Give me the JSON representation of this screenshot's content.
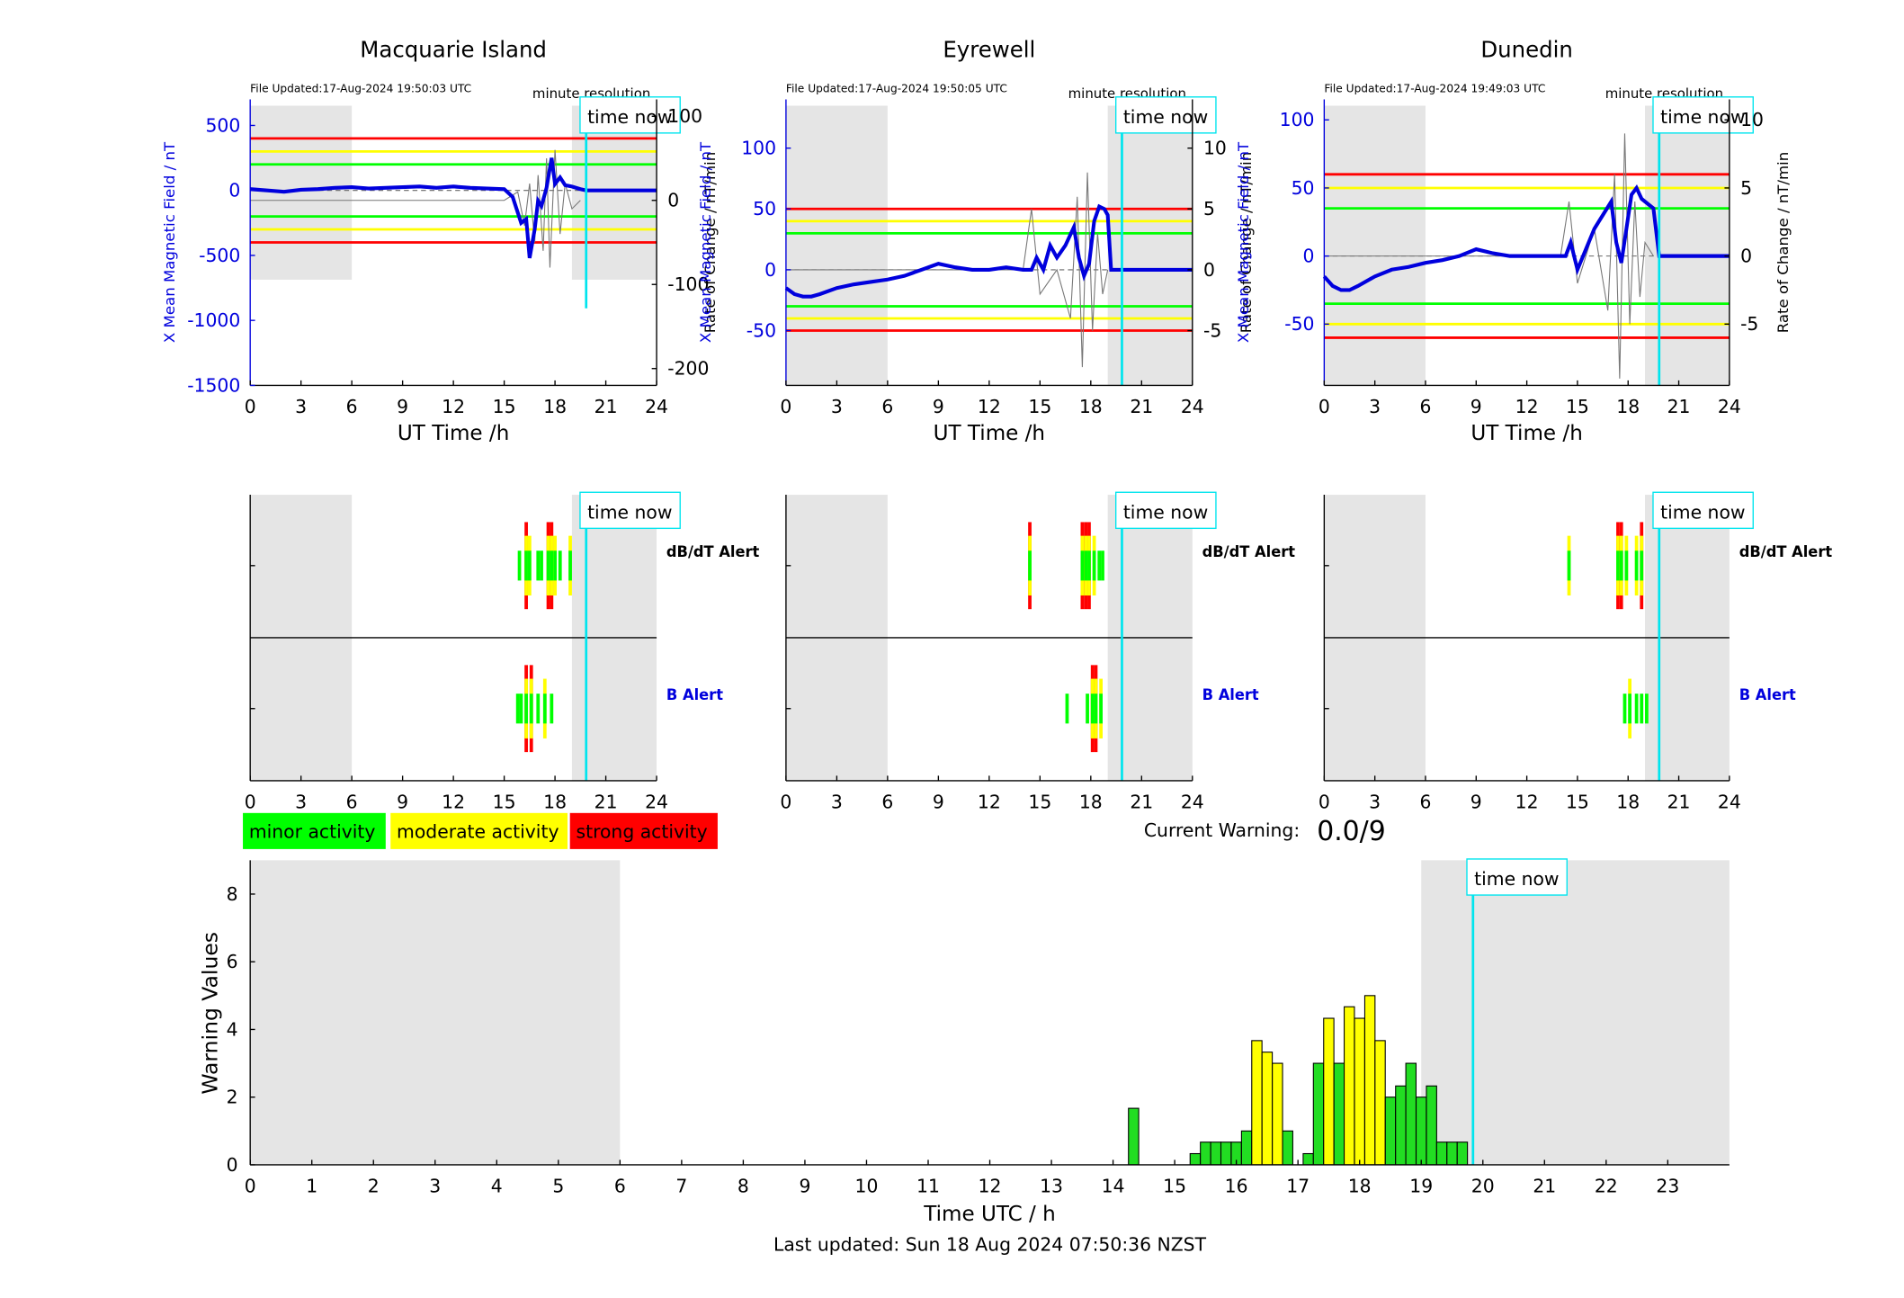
{
  "colors": {
    "red": "#ff0000",
    "yellow": "#ffff00",
    "green": "#00ff00",
    "bar_green": "#22dd22",
    "blue": "#0000dd",
    "cyan": "#00e5ee",
    "shade": "#e5e5e5"
  },
  "labels": {
    "time_now": "time now",
    "minute_resolution": "minute resolution",
    "x_label_top": "UT Time /h",
    "y_left_label": "X Mean Magnetic Field / nT",
    "y_right_label": "Rate of Change / nT/min",
    "dbdt_alert": "dB/dT Alert",
    "b_alert": "B Alert",
    "legend_minor": "minor activity",
    "legend_moderate": "moderate activity",
    "legend_strong": "strong activity",
    "current_warning_label": "Current Warning:",
    "current_warning_value": "0.0/9",
    "bottom_ylabel": "Warning Values",
    "bottom_xlabel": "Time UTC / h",
    "last_updated": "Last updated: Sun 18 Aug 2024 07:50:36 NZST"
  },
  "chart_data": [
    {
      "type": "line",
      "station": "Macquarie Island",
      "file_updated": "File Updated:17-Aug-2024 19:50:03 UTC",
      "xlim": [
        0,
        24
      ],
      "x_ticks": [
        0,
        3,
        6,
        9,
        12,
        15,
        18,
        21,
        24
      ],
      "ylim_left": [
        -1500,
        700
      ],
      "y_ticks_left": [
        -1500,
        -1000,
        -500,
        0,
        500
      ],
      "ylim_right": [
        -220,
        120
      ],
      "y_ticks_right": [
        -200,
        -100,
        0,
        100
      ],
      "thresholds": {
        "red": 400,
        "yellow": 300,
        "green": 200
      },
      "shaded_intervals": [
        [
          0,
          6
        ],
        [
          19,
          24
        ]
      ],
      "time_now": 19.84,
      "series_x": {
        "x": [
          0,
          1,
          2,
          3,
          4,
          5,
          6,
          7,
          8,
          9,
          10,
          11,
          12,
          13,
          14,
          15,
          15.5,
          16,
          16.3,
          16.5,
          16.8,
          17.0,
          17.2,
          17.5,
          17.8,
          18.0,
          18.3,
          18.6,
          19.0,
          19.5,
          19.84,
          24
        ],
        "y": [
          10,
          0,
          -10,
          5,
          10,
          20,
          25,
          15,
          20,
          25,
          30,
          20,
          30,
          20,
          15,
          10,
          -50,
          -250,
          -220,
          -520,
          -300,
          -80,
          -120,
          20,
          250,
          50,
          100,
          40,
          30,
          10,
          0,
          0
        ]
      },
      "series_rate": {
        "x": [
          0,
          3,
          6,
          9,
          12,
          15,
          15.8,
          16.2,
          16.5,
          16.8,
          17.0,
          17.3,
          17.5,
          17.7,
          18.0,
          18.3,
          18.6,
          19.0,
          19.5
        ],
        "y": [
          0,
          0,
          0,
          0,
          0,
          0,
          10,
          -30,
          20,
          -50,
          30,
          -60,
          50,
          -80,
          60,
          -40,
          20,
          -10,
          0
        ]
      }
    },
    {
      "type": "line",
      "station": "Eyrewell",
      "file_updated": "File Updated:17-Aug-2024 19:50:05 UTC",
      "xlim": [
        0,
        24
      ],
      "x_ticks": [
        0,
        3,
        6,
        9,
        12,
        15,
        18,
        21,
        24
      ],
      "ylim_left": [
        -95,
        140
      ],
      "y_ticks_left": [
        -50,
        0,
        50,
        100
      ],
      "ylim_right": [
        -9.5,
        14
      ],
      "y_ticks_right": [
        -5,
        0,
        5,
        10
      ],
      "thresholds": {
        "red": 50,
        "yellow": 40,
        "green": 30
      },
      "shaded_intervals": [
        [
          0,
          6
        ],
        [
          19,
          24
        ]
      ],
      "time_now": 19.84,
      "series_x": {
        "x": [
          0,
          0.5,
          1,
          1.5,
          2,
          3,
          4,
          5,
          6,
          7,
          8,
          9,
          10,
          11,
          12,
          13,
          14,
          14.5,
          14.8,
          15.2,
          15.6,
          16,
          16.5,
          17,
          17.3,
          17.6,
          17.9,
          18.2,
          18.5,
          18.8,
          19.0,
          19.2,
          19.84,
          24
        ],
        "y": [
          -15,
          -20,
          -22,
          -22,
          -20,
          -15,
          -12,
          -10,
          -8,
          -5,
          0,
          5,
          2,
          0,
          0,
          2,
          0,
          0,
          10,
          0,
          20,
          10,
          20,
          35,
          10,
          -5,
          5,
          40,
          52,
          50,
          45,
          0,
          0,
          0
        ]
      },
      "series_rate": {
        "x": [
          0,
          3,
          6,
          9,
          12,
          14,
          14.5,
          15,
          16,
          16.8,
          17.2,
          17.5,
          17.8,
          18.1,
          18.4,
          18.7,
          19.0
        ],
        "y": [
          0,
          0,
          0,
          0,
          0,
          0,
          5,
          -2,
          0,
          -4,
          6,
          -8,
          8,
          -5,
          3,
          -2,
          0
        ]
      }
    },
    {
      "type": "line",
      "station": "Dunedin",
      "file_updated": "File Updated:17-Aug-2024 19:49:03 UTC",
      "xlim": [
        0,
        24
      ],
      "x_ticks": [
        0,
        3,
        6,
        9,
        12,
        15,
        18,
        21,
        24
      ],
      "ylim_left": [
        -95,
        115
      ],
      "y_ticks_left": [
        -50,
        0,
        50,
        100
      ],
      "ylim_right": [
        -9.5,
        11.5
      ],
      "y_ticks_right": [
        -5,
        0,
        5,
        10
      ],
      "thresholds": {
        "red": 60,
        "yellow": 50,
        "green": 35
      },
      "shaded_intervals": [
        [
          0,
          6
        ],
        [
          19,
          24
        ]
      ],
      "time_now": 19.84,
      "series_x": {
        "x": [
          0,
          0.5,
          1,
          1.5,
          2,
          3,
          4,
          5,
          6,
          7,
          8,
          9,
          10,
          11,
          12,
          13,
          14,
          14.3,
          14.6,
          15.0,
          15.5,
          16,
          16.5,
          17,
          17.3,
          17.6,
          17.9,
          18.2,
          18.5,
          18.8,
          19.2,
          19.5,
          19.84,
          24
        ],
        "y": [
          -15,
          -22,
          -25,
          -25,
          -22,
          -15,
          -10,
          -8,
          -5,
          -3,
          0,
          5,
          2,
          0,
          0,
          0,
          0,
          0,
          10,
          -10,
          5,
          20,
          30,
          40,
          10,
          -5,
          20,
          45,
          50,
          42,
          38,
          35,
          0,
          0
        ]
      },
      "series_rate": {
        "x": [
          0,
          3,
          6,
          9,
          12,
          14,
          14.5,
          15,
          16,
          16.8,
          17.2,
          17.5,
          17.8,
          18.1,
          18.4,
          18.7,
          19.0,
          19.5
        ],
        "y": [
          0,
          0,
          0,
          0,
          0,
          0,
          4,
          -2,
          2,
          -4,
          6,
          -9,
          9,
          -5,
          4,
          -3,
          1,
          0
        ]
      }
    },
    {
      "type": "bar",
      "name": "alert_timeline",
      "station": "Macquarie Island",
      "xlim": [
        0,
        24
      ],
      "x_ticks": [
        0,
        3,
        6,
        9,
        12,
        15,
        18,
        21,
        24
      ],
      "shaded_intervals": [
        [
          0,
          6
        ],
        [
          19,
          24
        ]
      ],
      "time_now": 19.84,
      "dbdt": [
        {
          "x": 15.9,
          "level": 1
        },
        {
          "x": 16.3,
          "level": 3
        },
        {
          "x": 16.5,
          "level": 2
        },
        {
          "x": 17.0,
          "level": 1
        },
        {
          "x": 17.2,
          "level": 1
        },
        {
          "x": 17.6,
          "level": 3
        },
        {
          "x": 17.8,
          "level": 3
        },
        {
          "x": 18.0,
          "level": 2
        },
        {
          "x": 18.3,
          "level": 1
        },
        {
          "x": 18.9,
          "level": 2
        }
      ],
      "b": [
        {
          "x": 15.8,
          "level": 1
        },
        {
          "x": 16.0,
          "level": 1
        },
        {
          "x": 16.3,
          "level": 3
        },
        {
          "x": 16.6,
          "level": 3
        },
        {
          "x": 17.0,
          "level": 1
        },
        {
          "x": 17.4,
          "level": 2
        },
        {
          "x": 17.8,
          "level": 1
        }
      ]
    },
    {
      "type": "bar",
      "name": "alert_timeline",
      "station": "Eyrewell",
      "xlim": [
        0,
        24
      ],
      "x_ticks": [
        0,
        3,
        6,
        9,
        12,
        15,
        18,
        21,
        24
      ],
      "shaded_intervals": [
        [
          0,
          6
        ],
        [
          19,
          24
        ]
      ],
      "time_now": 19.84,
      "dbdt": [
        {
          "x": 14.4,
          "level": 3
        },
        {
          "x": 17.5,
          "level": 3
        },
        {
          "x": 17.7,
          "level": 3
        },
        {
          "x": 17.9,
          "level": 3
        },
        {
          "x": 18.2,
          "level": 2
        },
        {
          "x": 18.5,
          "level": 1
        },
        {
          "x": 18.7,
          "level": 1
        }
      ],
      "b": [
        {
          "x": 16.6,
          "level": 1
        },
        {
          "x": 17.8,
          "level": 1
        },
        {
          "x": 18.1,
          "level": 3
        },
        {
          "x": 18.3,
          "level": 3
        },
        {
          "x": 18.6,
          "level": 2
        }
      ]
    },
    {
      "type": "bar",
      "name": "alert_timeline",
      "station": "Dunedin",
      "xlim": [
        0,
        24
      ],
      "x_ticks": [
        0,
        3,
        6,
        9,
        12,
        15,
        18,
        21,
        24
      ],
      "shaded_intervals": [
        [
          0,
          6
        ],
        [
          19,
          24
        ]
      ],
      "time_now": 19.84,
      "dbdt": [
        {
          "x": 14.5,
          "level": 2
        },
        {
          "x": 17.4,
          "level": 3
        },
        {
          "x": 17.6,
          "level": 3
        },
        {
          "x": 17.9,
          "level": 2
        },
        {
          "x": 18.5,
          "level": 2
        },
        {
          "x": 18.8,
          "level": 3
        }
      ],
      "b": [
        {
          "x": 17.8,
          "level": 1
        },
        {
          "x": 18.1,
          "level": 2
        },
        {
          "x": 18.5,
          "level": 1
        },
        {
          "x": 18.8,
          "level": 1
        },
        {
          "x": 19.1,
          "level": 1
        }
      ]
    },
    {
      "type": "bar",
      "name": "warning_values",
      "xlim": [
        0,
        24
      ],
      "ylim": [
        0,
        9
      ],
      "x_ticks": [
        0,
        1,
        2,
        3,
        4,
        5,
        6,
        7,
        8,
        9,
        10,
        11,
        12,
        13,
        14,
        15,
        16,
        17,
        18,
        19,
        20,
        21,
        22,
        23
      ],
      "y_ticks": [
        0,
        2,
        4,
        6,
        8
      ],
      "shaded_intervals": [
        [
          0,
          6
        ],
        [
          19,
          24
        ]
      ],
      "time_now": 19.84,
      "bar_width": 0.166,
      "bars": [
        {
          "x": 14.333,
          "value": 1.67,
          "level": 1
        },
        {
          "x": 15.333,
          "value": 0.33,
          "level": 1
        },
        {
          "x": 15.5,
          "value": 0.67,
          "level": 1
        },
        {
          "x": 15.667,
          "value": 0.67,
          "level": 1
        },
        {
          "x": 15.833,
          "value": 0.67,
          "level": 1
        },
        {
          "x": 16.0,
          "value": 0.67,
          "level": 1
        },
        {
          "x": 16.167,
          "value": 1.0,
          "level": 1
        },
        {
          "x": 16.333,
          "value": 3.67,
          "level": 2
        },
        {
          "x": 16.5,
          "value": 3.33,
          "level": 2
        },
        {
          "x": 16.667,
          "value": 3.0,
          "level": 2
        },
        {
          "x": 16.833,
          "value": 1.0,
          "level": 1
        },
        {
          "x": 17.167,
          "value": 0.33,
          "level": 1
        },
        {
          "x": 17.333,
          "value": 3.0,
          "level": 1
        },
        {
          "x": 17.5,
          "value": 4.33,
          "level": 2
        },
        {
          "x": 17.667,
          "value": 3.0,
          "level": 1
        },
        {
          "x": 17.833,
          "value": 4.67,
          "level": 2
        },
        {
          "x": 18.0,
          "value": 4.33,
          "level": 2
        },
        {
          "x": 18.167,
          "value": 5.0,
          "level": 2
        },
        {
          "x": 18.333,
          "value": 3.67,
          "level": 2
        },
        {
          "x": 18.5,
          "value": 2.0,
          "level": 1
        },
        {
          "x": 18.667,
          "value": 2.33,
          "level": 1
        },
        {
          "x": 18.833,
          "value": 3.0,
          "level": 1
        },
        {
          "x": 19.0,
          "value": 2.0,
          "level": 1
        },
        {
          "x": 19.167,
          "value": 2.33,
          "level": 1
        },
        {
          "x": 19.333,
          "value": 0.67,
          "level": 1
        },
        {
          "x": 19.5,
          "value": 0.67,
          "level": 1
        },
        {
          "x": 19.667,
          "value": 0.67,
          "level": 1
        }
      ]
    }
  ]
}
